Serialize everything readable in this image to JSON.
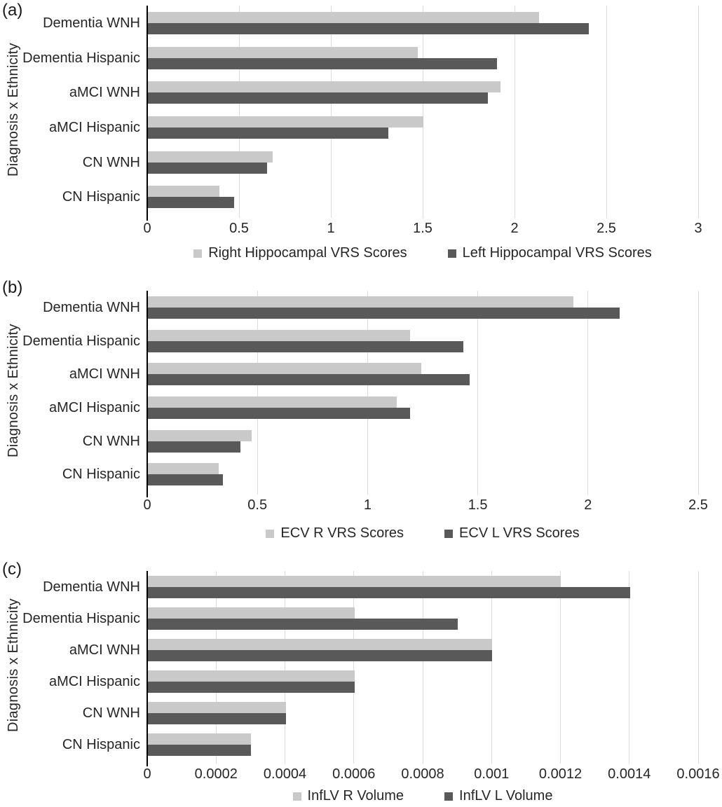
{
  "figure_name": "Diagnosis x Ethnicity bar charts",
  "colors": {
    "light_bar": "#c9c9c9",
    "dark_bar": "#595959",
    "gridline": "#dcdcdc",
    "axis": "#000000",
    "text": "#262626"
  },
  "chart_data": [
    {
      "type": "bar",
      "orientation": "horizontal",
      "panel": "(a)",
      "ylabel": "Diagnosis x Ethnicity",
      "categories": [
        "Dementia WNH",
        "Dementia Hispanic",
        "aMCI WNH",
        "aMCI Hispanic",
        "CN WNH",
        "CN Hispanic"
      ],
      "series": [
        {
          "name": "Right Hippocampal VRS Scores",
          "color": "#c9c9c9",
          "values": [
            2.13,
            1.47,
            1.92,
            1.5,
            0.68,
            0.39
          ]
        },
        {
          "name": "Left Hippocampal VRS Scores",
          "color": "#595959",
          "values": [
            2.4,
            1.9,
            1.85,
            1.31,
            0.65,
            0.47
          ]
        }
      ],
      "xlim": [
        0,
        3
      ],
      "tick_values": [
        0,
        0.5,
        1,
        1.5,
        2,
        2.5,
        3
      ],
      "tick_labels": [
        "0",
        "0.5",
        "1",
        "1.5",
        "2",
        "2.5",
        "3"
      ],
      "grid": true,
      "legend_position": "bottom"
    },
    {
      "type": "bar",
      "orientation": "horizontal",
      "panel": "(b)",
      "ylabel": "Diagnosis x Ethnicity",
      "categories": [
        "Dementia WNH",
        "Dementia Hispanic",
        "aMCI WNH",
        "aMCI Hispanic",
        "CN WNH",
        "CN Hispanic"
      ],
      "series": [
        {
          "name": "ECV R VRS Scores",
          "color": "#c9c9c9",
          "values": [
            1.93,
            1.19,
            1.24,
            1.13,
            0.47,
            0.32
          ]
        },
        {
          "name": "ECV L VRS Scores",
          "color": "#595959",
          "values": [
            2.14,
            1.43,
            1.46,
            1.19,
            0.42,
            0.34
          ]
        }
      ],
      "xlim": [
        0,
        2.5
      ],
      "tick_values": [
        0,
        0.5,
        1,
        1.5,
        2,
        2.5
      ],
      "tick_labels": [
        "0",
        "0.5",
        "1",
        "1.5",
        "2",
        "2.5"
      ],
      "grid": true,
      "legend_position": "bottom"
    },
    {
      "type": "bar",
      "orientation": "horizontal",
      "panel": "(c)",
      "ylabel": "Diagnosis x Ethnicity",
      "categories": [
        "Dementia WNH",
        "Dementia Hispanic",
        "aMCI WNH",
        "aMCI Hispanic",
        "CN WNH",
        "CN Hispanic"
      ],
      "series": [
        {
          "name": "InfLV R Volume",
          "color": "#c9c9c9",
          "values": [
            0.0012,
            0.0006,
            0.001,
            0.0006,
            0.0004,
            0.0003
          ]
        },
        {
          "name": "InfLV L Volume",
          "color": "#595959",
          "values": [
            0.0014,
            0.0009,
            0.001,
            0.0006,
            0.0004,
            0.0003
          ]
        }
      ],
      "xlim": [
        0,
        0.0016
      ],
      "tick_values": [
        0,
        0.0002,
        0.0004,
        0.0006,
        0.0008,
        0.001,
        0.0012,
        0.0014,
        0.0016
      ],
      "tick_labels": [
        "0",
        "0.0002",
        "0.0004",
        "0.0006",
        "0.0008",
        "0.001",
        "0.0012",
        "0.0014",
        "0.0016"
      ],
      "grid": true,
      "legend_position": "bottom"
    }
  ]
}
